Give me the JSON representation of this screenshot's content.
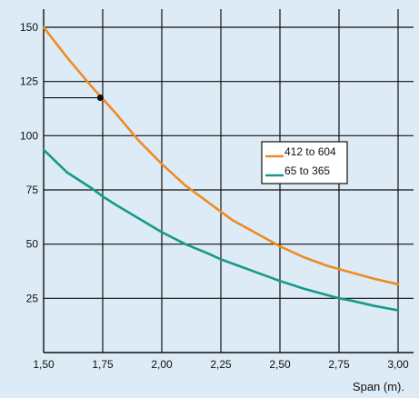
{
  "chart_data": {
    "type": "line",
    "title": "",
    "xlabel": "Span (m).",
    "ylabel": "",
    "xlim": [
      1.5,
      3.0
    ],
    "ylim": [
      0,
      150
    ],
    "x_ticks": [
      1.5,
      1.75,
      2.0,
      2.25,
      2.5,
      2.75,
      3.0
    ],
    "x_tick_labels": [
      "1,50",
      "1,75",
      "2,00",
      "2,25",
      "2,50",
      "2,75",
      "3,00"
    ],
    "y_ticks": [
      25,
      50,
      75,
      100,
      125,
      150
    ],
    "y_tick_labels": [
      "25",
      "50",
      "75",
      "100",
      "125",
      "150"
    ],
    "grid": true,
    "legend_position": "right",
    "series": [
      {
        "name": "412 to 604",
        "color": "#f08a24",
        "x": [
          1.5,
          1.6,
          1.7,
          1.75,
          1.8,
          1.9,
          2.0,
          2.1,
          2.2,
          2.25,
          2.3,
          2.4,
          2.5,
          2.6,
          2.7,
          2.75,
          2.8,
          2.9,
          3.0
        ],
        "y": [
          150,
          136,
          123,
          117,
          111,
          98,
          87,
          77,
          69,
          65,
          61,
          55,
          49,
          44,
          40,
          38.5,
          37,
          34,
          31.5
        ]
      },
      {
        "name": "65 to 365",
        "color": "#16998a",
        "x": [
          1.5,
          1.6,
          1.7,
          1.75,
          1.8,
          1.9,
          2.0,
          2.1,
          2.2,
          2.25,
          2.3,
          2.4,
          2.5,
          2.6,
          2.7,
          2.75,
          2.8,
          2.9,
          3.0
        ],
        "y": [
          93.5,
          83,
          76,
          72,
          68.5,
          62,
          55.5,
          50,
          45.5,
          43,
          41,
          37,
          33,
          29.5,
          26.5,
          25,
          24,
          21.5,
          19.5
        ]
      }
    ],
    "annotation": {
      "point": {
        "x": 1.74,
        "y": 117.5
      },
      "color": "#111111"
    }
  }
}
